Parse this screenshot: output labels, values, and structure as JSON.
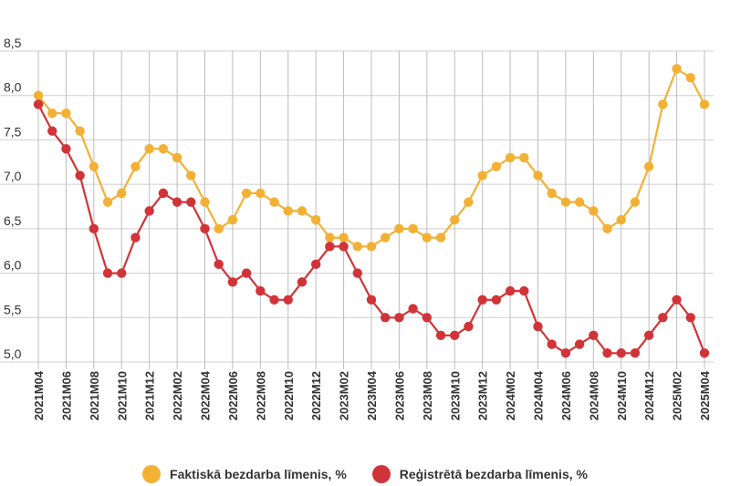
{
  "chart_data": {
    "type": "line",
    "categories": [
      "2021M04",
      "2021M05",
      "2021M06",
      "2021M07",
      "2021M08",
      "2021M09",
      "2021M10",
      "2021M11",
      "2021M12",
      "2022M01",
      "2022M02",
      "2022M03",
      "2022M04",
      "2022M05",
      "2022M06",
      "2022M07",
      "2022M08",
      "2022M09",
      "2022M10",
      "2022M11",
      "2022M12",
      "2023M01",
      "2023M02",
      "2023M03",
      "2023M04",
      "2023M05",
      "2023M06",
      "2023M07",
      "2023M08",
      "2023M09",
      "2023M10",
      "2023M11",
      "2023M12",
      "2024M01",
      "2024M02",
      "2024M03",
      "2024M04",
      "2024M05",
      "2024M06",
      "2024M07",
      "2024M08",
      "2024M09",
      "2024M10",
      "2024M11",
      "2024M12",
      "2025M01",
      "2025M02",
      "2025M03",
      "2025M04"
    ],
    "x_tick_labels": [
      "2021M04",
      "2021M06",
      "2021M08",
      "2021M10",
      "2021M12",
      "2022M02",
      "2022M04",
      "2022M06",
      "2022M08",
      "2022M10",
      "2022M12",
      "2023M02",
      "2023M04",
      "2023M06",
      "2023M08",
      "2023M10",
      "2023M12",
      "2024M02",
      "2024M04",
      "2024M06",
      "2024M08",
      "2024M10",
      "2024M12",
      "2025M02",
      "2025M04"
    ],
    "y_tick_labels": [
      "8,5",
      "8,0",
      "7,5",
      "7,0",
      "6,5",
      "6,0",
      "5,5",
      "5,0"
    ],
    "y_ticks": [
      8.5,
      8.0,
      7.5,
      7.0,
      6.5,
      6.0,
      5.5,
      5.0
    ],
    "ylim": [
      5.0,
      8.5
    ],
    "grid": true,
    "legend_position": "bottom",
    "series": [
      {
        "name": "Faktiskā bezdarba līmenis, %",
        "color": "#f2b134",
        "values": [
          8.0,
          7.8,
          7.8,
          7.6,
          7.2,
          6.8,
          6.9,
          7.2,
          7.4,
          7.4,
          7.3,
          7.1,
          6.8,
          6.5,
          6.6,
          6.9,
          6.9,
          6.8,
          6.7,
          6.7,
          6.6,
          6.4,
          6.4,
          6.3,
          6.3,
          6.4,
          6.5,
          6.5,
          6.4,
          6.4,
          6.6,
          6.8,
          7.1,
          7.2,
          7.3,
          7.3,
          7.1,
          6.9,
          6.8,
          6.8,
          6.7,
          6.5,
          6.6,
          6.8,
          7.2,
          7.9,
          8.3,
          8.2,
          7.9
        ]
      },
      {
        "name": "Reģistrētā bezdarba līmenis, %",
        "color": "#d13438",
        "values": [
          7.9,
          7.6,
          7.4,
          7.1,
          6.5,
          6.0,
          6.0,
          6.4,
          6.7,
          6.9,
          6.8,
          6.8,
          6.5,
          6.1,
          5.9,
          6.0,
          5.8,
          5.7,
          5.7,
          5.9,
          6.1,
          6.3,
          6.3,
          6.0,
          5.7,
          5.5,
          5.5,
          5.6,
          5.5,
          5.3,
          5.3,
          5.4,
          5.7,
          5.7,
          5.8,
          5.8,
          5.4,
          5.2,
          5.1,
          5.2,
          5.3,
          5.1,
          5.1,
          5.1,
          5.3,
          5.5,
          5.7,
          5.5,
          5.1
        ]
      }
    ]
  }
}
